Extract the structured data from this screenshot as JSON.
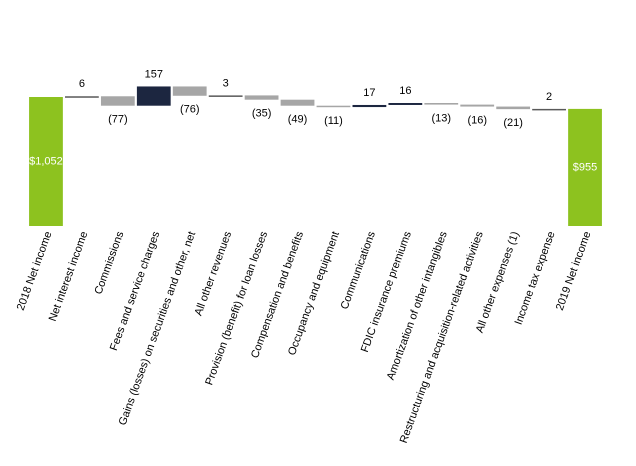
{
  "chart_data": {
    "type": "waterfall",
    "categories": [
      "2018 Net income",
      "Net interest income",
      "Commissions",
      "Fees and service charges",
      "Gains (losses) on securities and other, net",
      "All other revenues",
      "Provision (benefit) for loan losses",
      "Compensation and benefits",
      "Occupancy and equipment",
      "Communications",
      "FDIC insurance premiums",
      "Amortization of other intangibles",
      "Restructuring and acquisition-related activities",
      "All other expenses (1)",
      "Income tax expense",
      "2019 Net income"
    ],
    "values": [
      1052,
      6,
      -77,
      157,
      -76,
      3,
      -35,
      -49,
      -11,
      17,
      16,
      -13,
      -16,
      -21,
      2,
      955
    ],
    "value_labels": [
      "$1,052",
      "6",
      "(77)",
      "157",
      "(76)",
      "3",
      "(35)",
      "(49)",
      "(11)",
      "17",
      "16",
      "(13)",
      "(16)",
      "(21)",
      "2",
      "$955"
    ],
    "colors": [
      "#8dc21f",
      "#595959",
      "#a6a6a6",
      "#1c2640",
      "#a6a6a6",
      "#595959",
      "#a6a6a6",
      "#a6a6a6",
      "#a6a6a6",
      "#1c2640",
      "#1c2640",
      "#a6a6a6",
      "#a6a6a6",
      "#a6a6a6",
      "#595959",
      "#8dc21f"
    ]
  }
}
